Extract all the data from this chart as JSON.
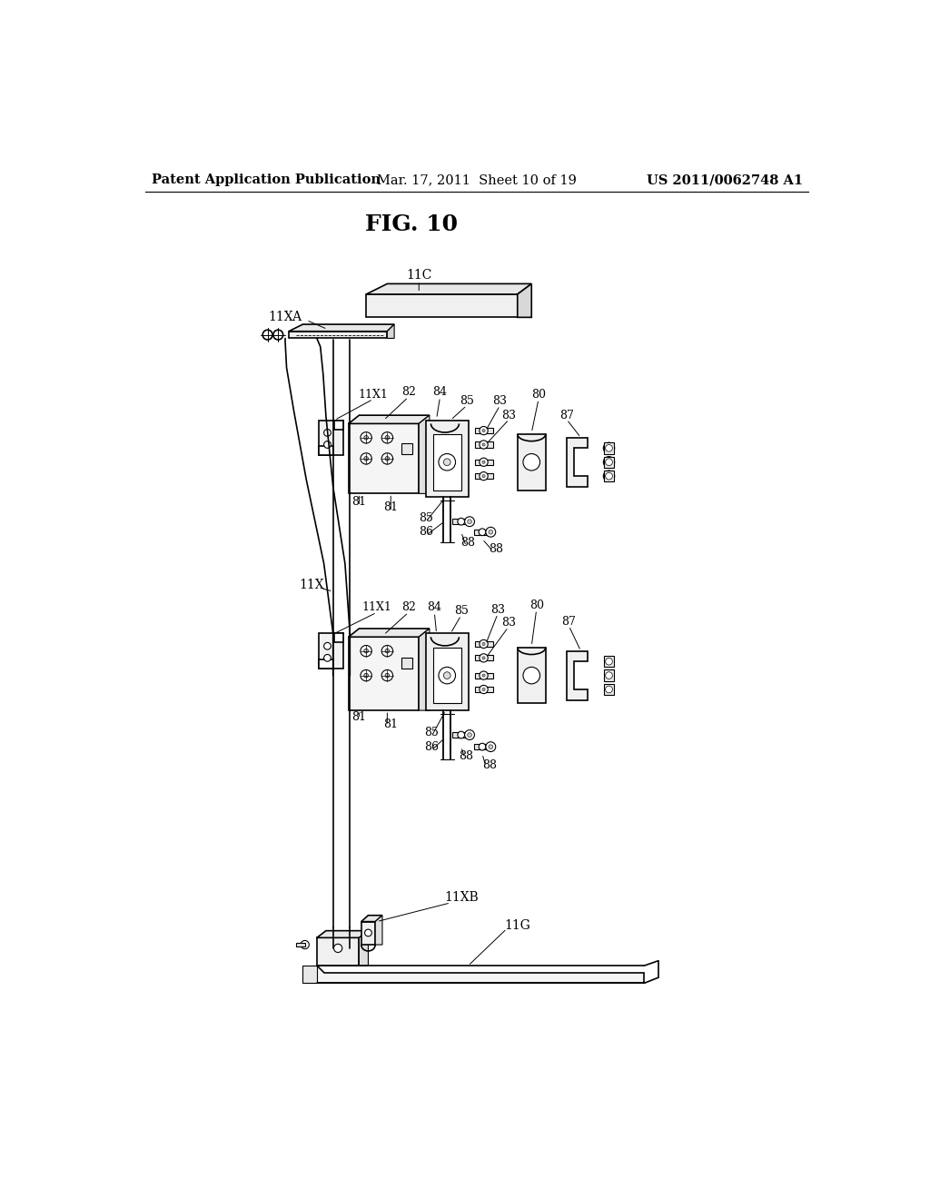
{
  "background_color": "#ffffff",
  "header_left": "Patent Application Publication",
  "header_center": "Mar. 17, 2011  Sheet 10 of 19",
  "header_right": "US 2011/0062748 A1",
  "figure_title": "FIG. 10",
  "header_fontsize": 10.5,
  "title_fontsize": 18,
  "label_fontsize": 9,
  "label_fontsize_large": 10
}
